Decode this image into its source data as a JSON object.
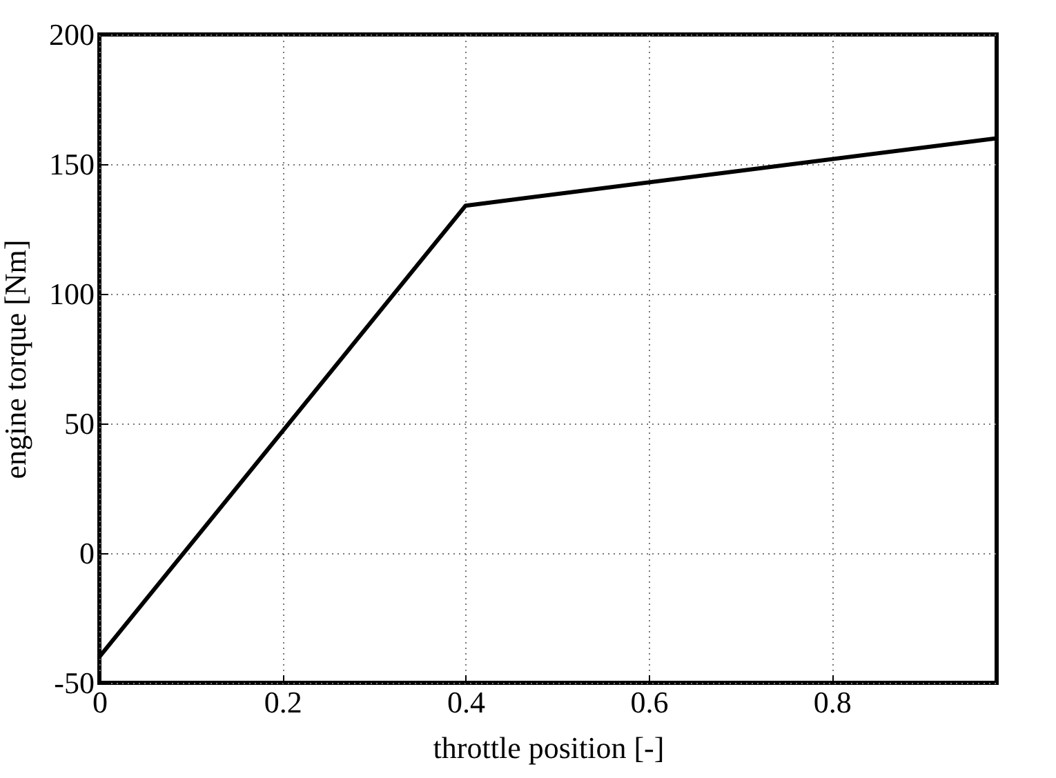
{
  "chart_data": {
    "type": "line",
    "xlabel": "throttle position [-]",
    "ylabel": "engine torque [Nm]",
    "x": [
      0,
      0.4,
      0.98
    ],
    "series": [
      {
        "color": "#000000",
        "values": [
          -40,
          134,
          160
        ]
      }
    ],
    "xlim": [
      0,
      0.98
    ],
    "xticks": [
      0,
      0.2,
      0.4,
      0.6,
      0.8
    ],
    "ylim": [
      -50,
      200
    ],
    "yticks": [
      -50,
      0,
      50,
      100,
      150,
      200
    ],
    "grid": true,
    "marker": "none",
    "line_style": "solid"
  }
}
